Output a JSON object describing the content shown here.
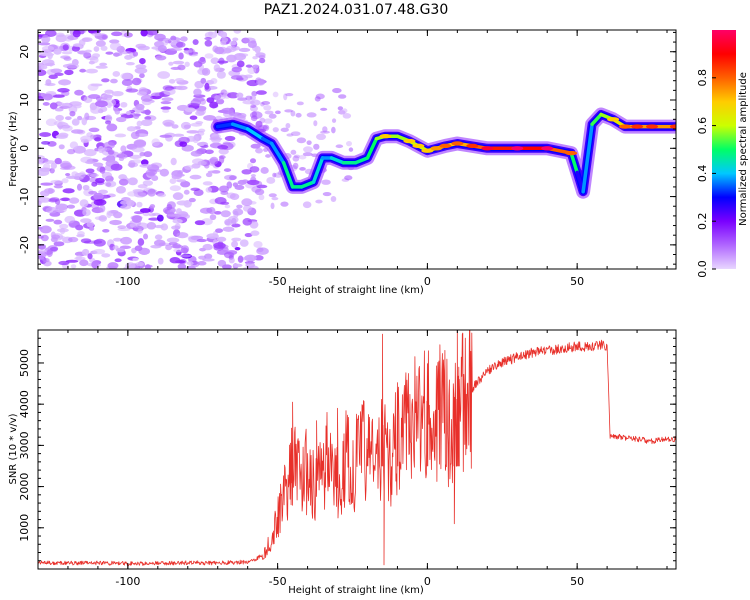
{
  "chart_data": [
    {
      "type": "heatmap",
      "title": "PAZ1.2024.031.07.48.G30",
      "xlabel": "Height of straight line (km)",
      "ylabel": "Frequency (Hz)",
      "xlim": [
        -130,
        83
      ],
      "ylim": [
        -25,
        24.5
      ],
      "x_ticks": [
        "-100",
        "-50",
        "0",
        "50"
      ],
      "x_tick_values": [
        -100,
        -50,
        0,
        50
      ],
      "y_ticks": [
        "-20",
        "-10",
        "0",
        "10",
        "20"
      ],
      "y_tick_values": [
        -20,
        -10,
        0,
        10,
        20
      ],
      "colorbar": {
        "label": "Normalized spectral amplitude",
        "range": [
          0,
          1
        ],
        "ticks": [
          "0.0",
          "0.2",
          "0.4",
          "0.6",
          "0.8"
        ],
        "tick_values": [
          0.0,
          0.2,
          0.4,
          0.6,
          0.8
        ],
        "colors": [
          "#e8d6ff",
          "#b066ff",
          "#7a00ff",
          "#0000ff",
          "#00c8ff",
          "#00ff66",
          "#ccff00",
          "#ffcc00",
          "#ff6000",
          "#ff0000",
          "#ff0066"
        ]
      },
      "ridge": {
        "x": [
          -70,
          -65,
          -60,
          -55,
          -52,
          -48,
          -45,
          -42,
          -38,
          -35,
          -32,
          -28,
          -24,
          -20,
          -17,
          -14,
          -10,
          -6,
          -3,
          0,
          3,
          6,
          10,
          15,
          20,
          30,
          40,
          48,
          50,
          52,
          55,
          58,
          62,
          66,
          70,
          75,
          83
        ],
        "y": [
          4.5,
          5,
          4,
          2,
          1,
          -3,
          -8,
          -8,
          -7,
          -2,
          -2,
          -3,
          -3,
          -2,
          2,
          2.5,
          2.5,
          1.5,
          0.5,
          -0.5,
          0,
          0.5,
          1,
          0.5,
          0,
          0,
          0,
          -1,
          -5,
          -9,
          5,
          7,
          6,
          4.5,
          4.5,
          4.5,
          4.5
        ],
        "amplitude": [
          0.3,
          0.35,
          0.4,
          0.4,
          0.3,
          0.45,
          0.5,
          0.45,
          0.5,
          0.35,
          0.4,
          0.45,
          0.5,
          0.45,
          0.55,
          0.6,
          0.55,
          0.6,
          0.6,
          0.6,
          0.65,
          0.7,
          0.7,
          0.75,
          0.85,
          0.9,
          0.9,
          0.7,
          0.3,
          0.25,
          0.5,
          0.55,
          0.6,
          0.7,
          0.75,
          0.75,
          0.75
        ]
      }
    },
    {
      "type": "line",
      "xlabel": "Height of straight line (km)",
      "ylabel": "SNR (10 * v/v)",
      "xlim": [
        -130,
        83
      ],
      "ylim": [
        0,
        5800
      ],
      "x_ticks": [
        "-100",
        "-50",
        "0",
        "50"
      ],
      "x_tick_values": [
        -100,
        -50,
        0,
        50
      ],
      "y_ticks": [
        "1000",
        "2000",
        "3000",
        "4000",
        "5000"
      ],
      "y_tick_values": [
        1000,
        2000,
        3000,
        4000,
        5000
      ],
      "series": [
        {
          "color": "#e8302a",
          "x": [
            -130,
            -120,
            -110,
            -100,
            -90,
            -80,
            -70,
            -65,
            -60,
            -57,
            -55,
            -52,
            -50,
            -48,
            -45,
            -42,
            -40,
            -37,
            -35,
            -32,
            -30,
            -27,
            -25,
            -22,
            -20,
            -17,
            -15,
            -13,
            -10,
            -8,
            -5,
            -3,
            0,
            3,
            5,
            8,
            10,
            12,
            15,
            18,
            20,
            25,
            30,
            35,
            40,
            45,
            50,
            55,
            58,
            60,
            61,
            65,
            70,
            75,
            80,
            83
          ],
          "y": [
            150,
            140,
            150,
            130,
            140,
            150,
            150,
            160,
            170,
            250,
            350,
            700,
            1300,
            1800,
            2500,
            2200,
            2400,
            1900,
            2500,
            2800,
            2100,
            2700,
            2400,
            2900,
            2800,
            2600,
            3000,
            2500,
            3200,
            3400,
            3600,
            3700,
            3900,
            3700,
            3800,
            3500,
            3900,
            4100,
            4400,
            4600,
            4800,
            5000,
            5150,
            5250,
            5300,
            5350,
            5400,
            5400,
            5450,
            5400,
            3200,
            3200,
            3150,
            3100,
            3150,
            3150
          ],
          "spikes": {
            "x": [
              -45,
              -37,
              -30,
              -20,
              -15,
              -14.5,
              -10,
              0,
              9,
              10,
              10.5
            ],
            "y": [
              4050,
              3600,
              3900,
              2900,
              5700,
              100,
              3500,
              4500,
              1100,
              5800,
              4900
            ]
          }
        }
      ]
    }
  ]
}
